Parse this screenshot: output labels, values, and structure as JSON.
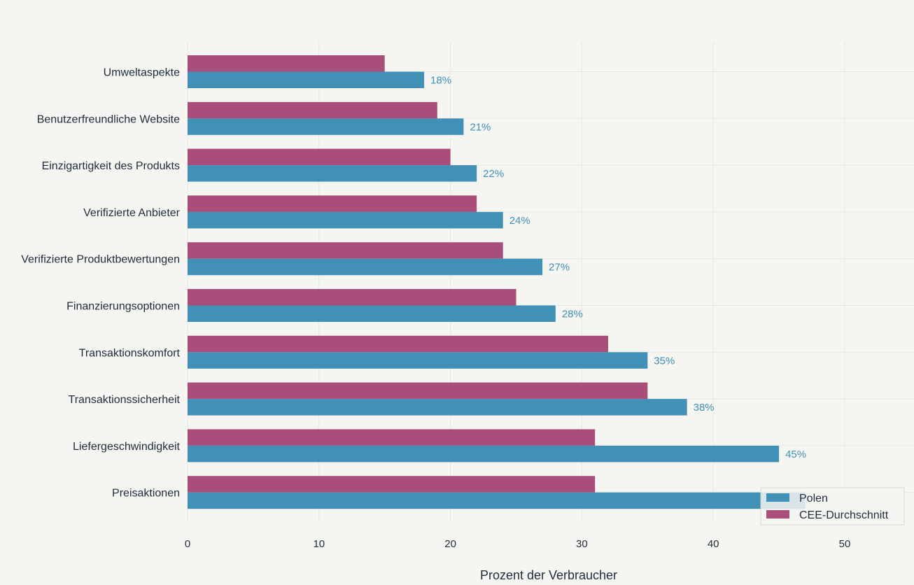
{
  "chart_data": {
    "type": "bar",
    "orientation": "horizontal",
    "title": "",
    "xlabel": "Prozent der Verbraucher",
    "ylabel": "",
    "xlim": [
      0,
      55
    ],
    "xticks": [
      0,
      10,
      20,
      30,
      40,
      50
    ],
    "grid": true,
    "legend_position": "bottom-right",
    "categories": [
      "Umweltaspekte",
      "Benutzerfreundliche Website",
      "Einzigartigkeit des Produkts",
      "Verifizierte Anbieter",
      "Verifizierte Produktbewertungen",
      "Finanzierungsoptionen",
      "Transaktionskomfort",
      "Transaktionssicherheit",
      "Liefergeschwindigkeit",
      "Preisaktionen"
    ],
    "series": [
      {
        "name": "Polen",
        "color": "#4190b5",
        "values": [
          18,
          21,
          22,
          24,
          27,
          28,
          35,
          38,
          45,
          47
        ],
        "data_labels": [
          "18%",
          "21%",
          "22%",
          "24%",
          "27%",
          "28%",
          "35%",
          "38%",
          "45%",
          ""
        ]
      },
      {
        "name": "CEE-Durchschnitt",
        "color": "#a94e7b",
        "values": [
          15,
          19,
          20,
          22,
          24,
          25,
          32,
          35,
          31,
          31
        ],
        "data_labels": []
      }
    ]
  }
}
